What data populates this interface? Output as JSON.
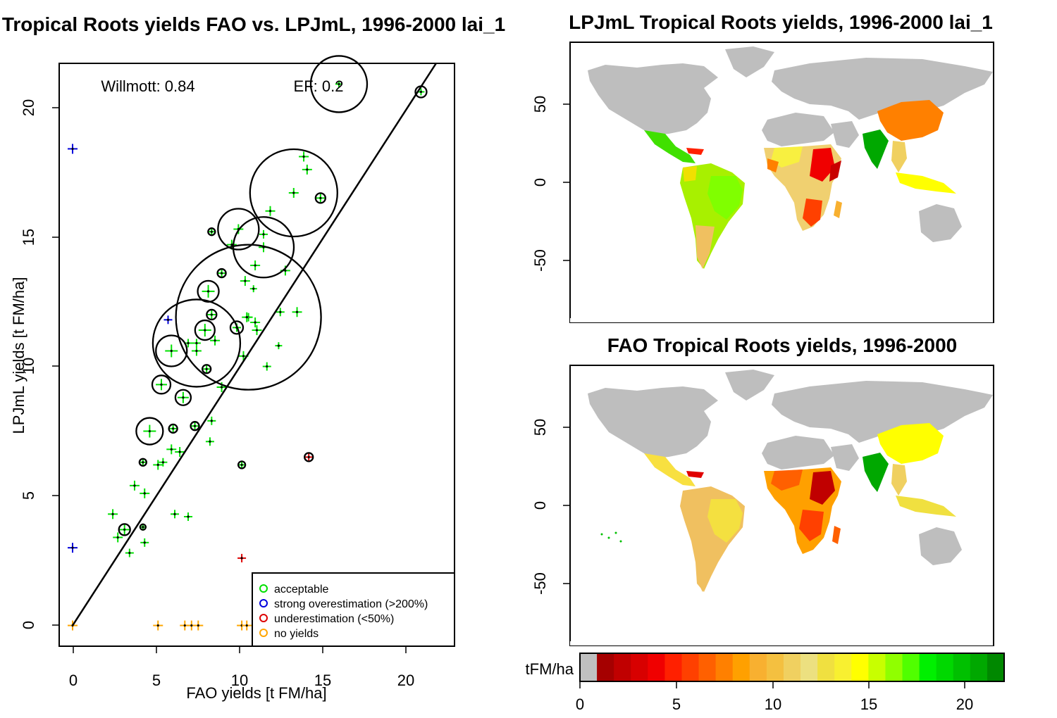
{
  "scatter": {
    "title": "Tropical Roots yields FAO vs. LPJmL, 1996-2000 lai_1",
    "xlabel": "FAO yields [t FM/ha]",
    "ylabel": "LPJmL yields [t FM/ha]",
    "stats": {
      "willmott": "Willmott: 0.84",
      "ef": "EF: 0.2"
    },
    "legend": [
      {
        "label": "acceptable",
        "color": "#00e000"
      },
      {
        "label": "strong overestimation (>200%)",
        "color": "#0000dd"
      },
      {
        "label": "underestimation (<50%)",
        "color": "#dd0000"
      },
      {
        "label": "no yields",
        "color": "#ffa500"
      }
    ],
    "xticks": [
      "0",
      "5",
      "10",
      "15",
      "20"
    ],
    "yticks": [
      "0",
      "5",
      "10",
      "15",
      "20"
    ]
  },
  "map_top": {
    "title": "LPJmL Tropical Roots yields, 1996-2000 lai_1",
    "yticks": [
      "50",
      "0",
      "-50"
    ]
  },
  "map_bottom": {
    "title": "FAO Tropical Roots yields, 1996-2000",
    "yticks": [
      "50",
      "0",
      "-50"
    ]
  },
  "colorbar": {
    "unit": "tFM/ha",
    "ticks": [
      "0",
      "5",
      "10",
      "15",
      "20"
    ],
    "colors": [
      "#c0c0c0",
      "#a50000",
      "#c00000",
      "#d80000",
      "#f00000",
      "#ff2000",
      "#ff4000",
      "#ff6000",
      "#ff8000",
      "#ffa000",
      "#f8b030",
      "#f4c040",
      "#f0d060",
      "#ece080",
      "#f0e040",
      "#f8f030",
      "#ffff00",
      "#c8ff00",
      "#90ff00",
      "#50ff00",
      "#00f000",
      "#00d800",
      "#00c000",
      "#00a800",
      "#008800"
    ]
  },
  "chart_data": {
    "type": "scatter",
    "title": "Tropical Roots yields FAO vs. LPJmL, 1996-2000 lai_1",
    "xlabel": "FAO yields [t FM/ha]",
    "ylabel": "LPJmL yields [t FM/ha]",
    "xlim": [
      -0.8,
      22.8
    ],
    "ylim": [
      -0.8,
      21.7
    ],
    "reference_line": {
      "type": "1:1",
      "from": [
        0,
        0
      ],
      "to": [
        22,
        22
      ]
    },
    "annotations": [
      "Willmott: 0.84",
      "EF: 0.2"
    ],
    "legend_position": "bottom-right",
    "points": [
      {
        "x": 0.0,
        "y": 18.4,
        "size": 14,
        "circle": 0,
        "cat": "over"
      },
      {
        "x": 0.0,
        "y": 3.0,
        "size": 14,
        "circle": 0,
        "cat": "over"
      },
      {
        "x": 5.7,
        "y": 11.8,
        "size": 12,
        "circle": 0,
        "cat": "over"
      },
      {
        "x": 10.1,
        "y": 2.6,
        "size": 12,
        "circle": 0,
        "cat": "under"
      },
      {
        "x": 14.1,
        "y": 6.5,
        "size": 10,
        "circle": 6,
        "cat": "under"
      },
      {
        "x": 0.0,
        "y": 0.0,
        "size": 14,
        "circle": 0,
        "cat": "none"
      },
      {
        "x": 5.1,
        "y": 0.0,
        "size": 14,
        "circle": 0,
        "cat": "none"
      },
      {
        "x": 6.7,
        "y": 0.0,
        "size": 14,
        "circle": 0,
        "cat": "none"
      },
      {
        "x": 7.1,
        "y": 0.0,
        "size": 14,
        "circle": 0,
        "cat": "none"
      },
      {
        "x": 7.5,
        "y": 0.0,
        "size": 14,
        "circle": 0,
        "cat": "none"
      },
      {
        "x": 10.1,
        "y": 0.0,
        "size": 14,
        "circle": 0,
        "cat": "none"
      },
      {
        "x": 10.4,
        "y": 0.0,
        "size": 14,
        "circle": 0,
        "cat": "none"
      },
      {
        "x": 15.9,
        "y": 20.9,
        "size": 10,
        "circle": 40,
        "cat": "ok"
      },
      {
        "x": 20.8,
        "y": 20.6,
        "size": 10,
        "circle": 8,
        "cat": "ok"
      },
      {
        "x": 13.8,
        "y": 18.1,
        "size": 14,
        "circle": 0,
        "cat": "ok"
      },
      {
        "x": 14.0,
        "y": 17.6,
        "size": 14,
        "circle": 0,
        "cat": "ok"
      },
      {
        "x": 13.2,
        "y": 16.7,
        "size": 14,
        "circle": 62,
        "cat": "ok"
      },
      {
        "x": 14.8,
        "y": 16.5,
        "size": 12,
        "circle": 7,
        "cat": "ok"
      },
      {
        "x": 11.8,
        "y": 16.0,
        "size": 14,
        "circle": 0,
        "cat": "ok"
      },
      {
        "x": 9.9,
        "y": 15.3,
        "size": 14,
        "circle": 29,
        "cat": "ok"
      },
      {
        "x": 8.3,
        "y": 15.2,
        "size": 10,
        "circle": 5,
        "cat": "ok"
      },
      {
        "x": 11.4,
        "y": 15.1,
        "size": 12,
        "circle": 0,
        "cat": "ok"
      },
      {
        "x": 9.5,
        "y": 14.7,
        "size": 14,
        "circle": 0,
        "cat": "ok"
      },
      {
        "x": 11.4,
        "y": 14.6,
        "size": 14,
        "circle": 43,
        "cat": "ok"
      },
      {
        "x": 10.9,
        "y": 13.9,
        "size": 14,
        "circle": 0,
        "cat": "ok"
      },
      {
        "x": 12.7,
        "y": 13.7,
        "size": 14,
        "circle": 0,
        "cat": "ok"
      },
      {
        "x": 8.9,
        "y": 13.6,
        "size": 10,
        "circle": 6,
        "cat": "ok"
      },
      {
        "x": 10.3,
        "y": 13.3,
        "size": 14,
        "circle": 0,
        "cat": "ok"
      },
      {
        "x": 10.8,
        "y": 13.0,
        "size": 10,
        "circle": 0,
        "cat": "ok"
      },
      {
        "x": 8.1,
        "y": 12.9,
        "size": 18,
        "circle": 15,
        "cat": "ok"
      },
      {
        "x": 10.5,
        "y": 11.9,
        "size": 12,
        "circle": 103,
        "cat": "ok"
      },
      {
        "x": 8.3,
        "y": 12.0,
        "size": 12,
        "circle": 7,
        "cat": "ok"
      },
      {
        "x": 12.4,
        "y": 12.1,
        "size": 12,
        "circle": 0,
        "cat": "ok"
      },
      {
        "x": 13.4,
        "y": 12.1,
        "size": 14,
        "circle": 0,
        "cat": "ok"
      },
      {
        "x": 10.4,
        "y": 11.9,
        "size": 14,
        "circle": 0,
        "cat": "ok"
      },
      {
        "x": 10.9,
        "y": 11.7,
        "size": 14,
        "circle": 0,
        "cat": "ok"
      },
      {
        "x": 11.0,
        "y": 11.4,
        "size": 14,
        "circle": 0,
        "cat": "ok"
      },
      {
        "x": 9.8,
        "y": 11.5,
        "size": 12,
        "circle": 9,
        "cat": "ok"
      },
      {
        "x": 7.9,
        "y": 11.4,
        "size": 18,
        "circle": 14,
        "cat": "ok"
      },
      {
        "x": 7.4,
        "y": 10.9,
        "size": 12,
        "circle": 62,
        "cat": "ok"
      },
      {
        "x": 8.5,
        "y": 11.0,
        "size": 14,
        "circle": 0,
        "cat": "ok"
      },
      {
        "x": 6.9,
        "y": 10.9,
        "size": 12,
        "circle": 0,
        "cat": "ok"
      },
      {
        "x": 12.3,
        "y": 10.8,
        "size": 10,
        "circle": 0,
        "cat": "ok"
      },
      {
        "x": 5.9,
        "y": 10.6,
        "size": 18,
        "circle": 22,
        "cat": "ok"
      },
      {
        "x": 7.4,
        "y": 10.6,
        "size": 14,
        "circle": 0,
        "cat": "ok"
      },
      {
        "x": 10.2,
        "y": 10.4,
        "size": 14,
        "circle": 0,
        "cat": "ok"
      },
      {
        "x": 11.6,
        "y": 10.0,
        "size": 12,
        "circle": 0,
        "cat": "ok"
      },
      {
        "x": 8.0,
        "y": 9.9,
        "size": 12,
        "circle": 6,
        "cat": "ok"
      },
      {
        "x": 5.3,
        "y": 9.3,
        "size": 16,
        "circle": 13,
        "cat": "ok"
      },
      {
        "x": 8.9,
        "y": 9.2,
        "size": 14,
        "circle": 0,
        "cat": "ok"
      },
      {
        "x": 6.6,
        "y": 8.8,
        "size": 16,
        "circle": 11,
        "cat": "ok"
      },
      {
        "x": 8.3,
        "y": 7.9,
        "size": 12,
        "circle": 0,
        "cat": "ok"
      },
      {
        "x": 4.6,
        "y": 7.5,
        "size": 18,
        "circle": 19,
        "cat": "ok"
      },
      {
        "x": 6.0,
        "y": 7.6,
        "size": 12,
        "circle": 6,
        "cat": "ok"
      },
      {
        "x": 7.3,
        "y": 7.7,
        "size": 12,
        "circle": 6,
        "cat": "ok"
      },
      {
        "x": 8.2,
        "y": 7.1,
        "size": 12,
        "circle": 0,
        "cat": "ok"
      },
      {
        "x": 5.9,
        "y": 6.8,
        "size": 14,
        "circle": 0,
        "cat": "ok"
      },
      {
        "x": 6.4,
        "y": 6.7,
        "size": 14,
        "circle": 0,
        "cat": "ok"
      },
      {
        "x": 4.2,
        "y": 6.3,
        "size": 10,
        "circle": 5,
        "cat": "ok"
      },
      {
        "x": 5.1,
        "y": 6.2,
        "size": 14,
        "circle": 0,
        "cat": "ok"
      },
      {
        "x": 5.4,
        "y": 6.3,
        "size": 12,
        "circle": 0,
        "cat": "ok"
      },
      {
        "x": 10.1,
        "y": 6.2,
        "size": 10,
        "circle": 5,
        "cat": "ok"
      },
      {
        "x": 3.7,
        "y": 5.4,
        "size": 14,
        "circle": 0,
        "cat": "ok"
      },
      {
        "x": 4.3,
        "y": 5.1,
        "size": 14,
        "circle": 0,
        "cat": "ok"
      },
      {
        "x": 2.4,
        "y": 4.3,
        "size": 14,
        "circle": 0,
        "cat": "ok"
      },
      {
        "x": 6.1,
        "y": 4.3,
        "size": 12,
        "circle": 0,
        "cat": "ok"
      },
      {
        "x": 6.9,
        "y": 4.2,
        "size": 12,
        "circle": 0,
        "cat": "ok"
      },
      {
        "x": 4.2,
        "y": 3.8,
        "size": 10,
        "circle": 4,
        "cat": "ok"
      },
      {
        "x": 3.1,
        "y": 3.7,
        "size": 14,
        "circle": 8,
        "cat": "ok"
      },
      {
        "x": 2.7,
        "y": 3.4,
        "size": 14,
        "circle": 0,
        "cat": "ok"
      },
      {
        "x": 4.3,
        "y": 3.2,
        "size": 12,
        "circle": 0,
        "cat": "ok"
      },
      {
        "x": 3.4,
        "y": 2.8,
        "size": 12,
        "circle": 0,
        "cat": "ok"
      }
    ]
  }
}
